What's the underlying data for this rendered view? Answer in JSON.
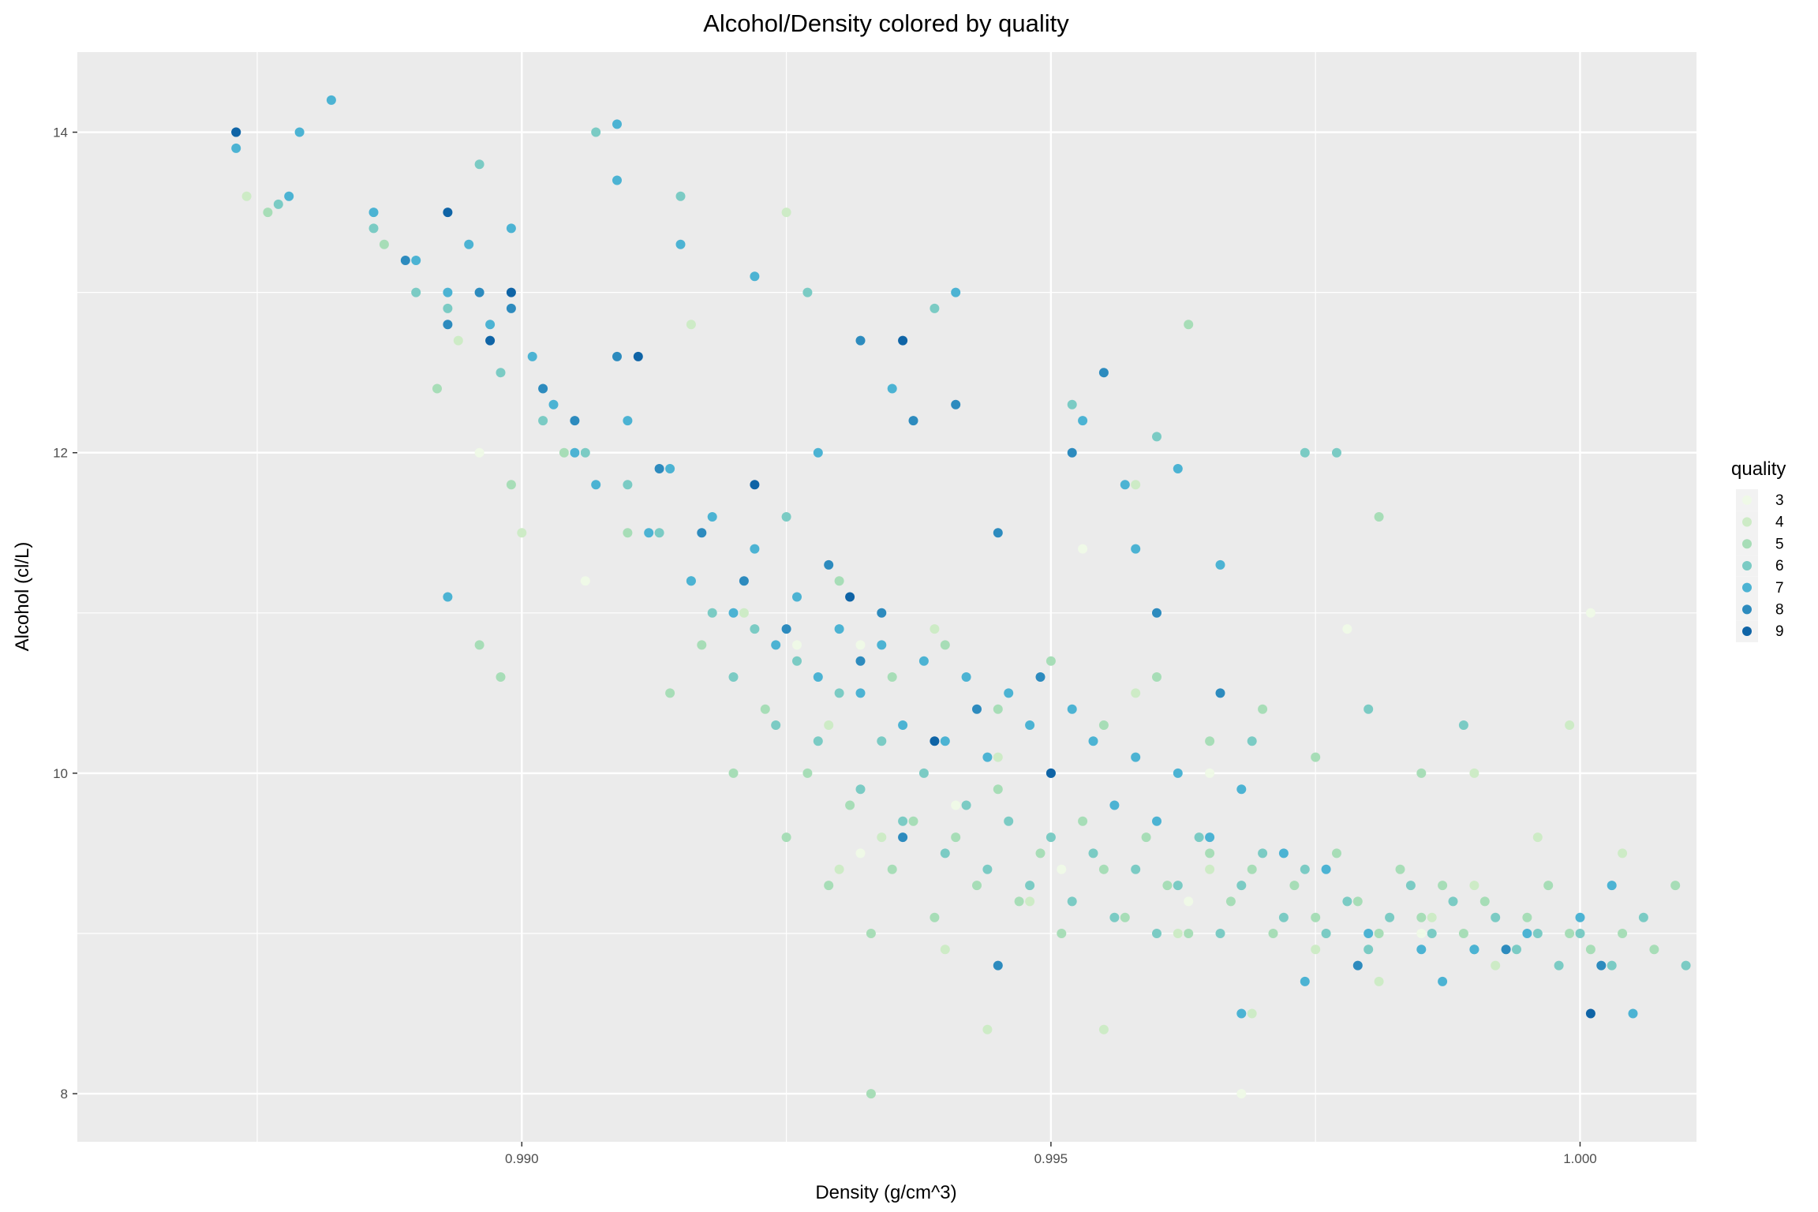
{
  "chart_data": {
    "type": "scatter",
    "title": "Alcohol/Density colored by quality",
    "xlabel": "Density (g/cm^3)",
    "ylabel": "Alcohol (cl/L)",
    "xlim": [
      0.9858,
      1.0011
    ],
    "ylim": [
      7.7,
      14.5
    ],
    "xticks": [
      0.99,
      0.995,
      1.0
    ],
    "xtick_labels": [
      "0.990",
      "0.995",
      "1.000"
    ],
    "yticks": [
      8,
      10,
      12,
      14
    ],
    "ytick_labels": [
      "8",
      "10",
      "12",
      "14"
    ],
    "grid": true,
    "legend_position": "right",
    "legend": {
      "title": "quality",
      "items": [
        {
          "label": "3",
          "color": "#eff9e7"
        },
        {
          "label": "4",
          "color": "#cdebc6"
        },
        {
          "label": "5",
          "color": "#a7ddb7"
        },
        {
          "label": "6",
          "color": "#7bcbc4"
        },
        {
          "label": "7",
          "color": "#4cb3d3"
        },
        {
          "label": "8",
          "color": "#2d8bbe"
        },
        {
          "label": "9",
          "color": "#0f64a6"
        }
      ]
    },
    "series": [
      {
        "name": "3",
        "points": [
          [
            0.9896,
            12.0
          ],
          [
            0.9906,
            11.2
          ],
          [
            0.9926,
            10.8
          ],
          [
            0.9932,
            9.5
          ],
          [
            0.9941,
            9.8
          ],
          [
            0.9951,
            9.4
          ],
          [
            0.9963,
            9.2
          ],
          [
            0.9968,
            8.0
          ],
          [
            0.9969,
            8.5
          ],
          [
            0.9978,
            10.9
          ],
          [
            1.0001,
            11.0
          ],
          [
            0.9965,
            10.0
          ],
          [
            0.9953,
            11.4
          ],
          [
            0.9985,
            9.0
          ],
          [
            0.9932,
            10.8
          ]
        ]
      },
      {
        "name": "4",
        "points": [
          [
            0.9874,
            13.6
          ],
          [
            0.9894,
            12.7
          ],
          [
            0.99,
            11.5
          ],
          [
            0.9916,
            12.8
          ],
          [
            0.9921,
            11.0
          ],
          [
            0.9925,
            13.5
          ],
          [
            0.9929,
            10.3
          ],
          [
            0.9934,
            9.6
          ],
          [
            0.994,
            8.9
          ],
          [
            0.9944,
            8.4
          ],
          [
            0.9948,
            9.2
          ],
          [
            0.9955,
            8.4
          ],
          [
            0.9958,
            11.8
          ],
          [
            0.9965,
            9.4
          ],
          [
            0.9969,
            8.5
          ],
          [
            0.9976,
            9.0
          ],
          [
            0.9981,
            8.7
          ],
          [
            0.9986,
            9.1
          ],
          [
            0.999,
            10.0
          ],
          [
            0.9996,
            9.6
          ],
          [
            0.9999,
            10.3
          ],
          [
            1.0004,
            9.5
          ],
          [
            0.9958,
            10.5
          ],
          [
            0.9962,
            9.0
          ],
          [
            0.9939,
            10.9
          ],
          [
            0.993,
            9.4
          ],
          [
            0.9945,
            10.1
          ],
          [
            0.9975,
            8.9
          ],
          [
            0.9992,
            8.8
          ],
          [
            0.999,
            9.3
          ]
        ]
      },
      {
        "name": "5",
        "points": [
          [
            0.9876,
            13.5
          ],
          [
            0.9887,
            13.3
          ],
          [
            0.9892,
            12.4
          ],
          [
            0.9899,
            11.8
          ],
          [
            0.9904,
            12.0
          ],
          [
            0.991,
            11.5
          ],
          [
            0.9914,
            10.5
          ],
          [
            0.9917,
            10.8
          ],
          [
            0.992,
            10.0
          ],
          [
            0.9923,
            10.4
          ],
          [
            0.9925,
            9.6
          ],
          [
            0.9927,
            10.0
          ],
          [
            0.9929,
            9.3
          ],
          [
            0.9931,
            9.8
          ],
          [
            0.9933,
            9.0
          ],
          [
            0.9935,
            9.4
          ],
          [
            0.9937,
            9.7
          ],
          [
            0.9939,
            9.1
          ],
          [
            0.9941,
            9.6
          ],
          [
            0.9943,
            9.3
          ],
          [
            0.9945,
            9.9
          ],
          [
            0.9947,
            9.2
          ],
          [
            0.9949,
            9.5
          ],
          [
            0.9951,
            9.0
          ],
          [
            0.9953,
            9.7
          ],
          [
            0.9955,
            9.4
          ],
          [
            0.9957,
            9.1
          ],
          [
            0.9959,
            9.6
          ],
          [
            0.9961,
            9.3
          ],
          [
            0.9963,
            9.0
          ],
          [
            0.9965,
            9.5
          ],
          [
            0.9967,
            9.2
          ],
          [
            0.9969,
            9.4
          ],
          [
            0.9971,
            9.0
          ],
          [
            0.9973,
            9.3
          ],
          [
            0.9975,
            9.1
          ],
          [
            0.9977,
            9.5
          ],
          [
            0.9979,
            9.2
          ],
          [
            0.9981,
            9.0
          ],
          [
            0.9983,
            9.4
          ],
          [
            0.9985,
            9.1
          ],
          [
            0.9987,
            9.3
          ],
          [
            0.9989,
            9.0
          ],
          [
            0.9991,
            9.2
          ],
          [
            0.9993,
            8.9
          ],
          [
            0.9995,
            9.1
          ],
          [
            0.9997,
            9.3
          ],
          [
            0.9999,
            9.0
          ],
          [
            1.0001,
            8.9
          ],
          [
            1.0004,
            9.0
          ],
          [
            1.0007,
            8.9
          ],
          [
            1.0009,
            9.3
          ],
          [
            0.9933,
            8.0
          ],
          [
            0.9963,
            12.8
          ],
          [
            0.9981,
            11.6
          ],
          [
            0.9896,
            10.8
          ],
          [
            0.9898,
            10.6
          ],
          [
            0.9935,
            10.6
          ],
          [
            0.9945,
            10.4
          ],
          [
            0.9955,
            10.3
          ],
          [
            0.9965,
            10.2
          ],
          [
            0.9975,
            10.1
          ],
          [
            0.9985,
            10.0
          ],
          [
            0.993,
            11.2
          ],
          [
            0.994,
            10.8
          ],
          [
            0.995,
            10.7
          ],
          [
            0.996,
            10.6
          ],
          [
            0.997,
            10.4
          ]
        ]
      },
      {
        "name": "6",
        "points": [
          [
            0.9877,
            13.55
          ],
          [
            0.9886,
            13.4
          ],
          [
            0.989,
            13.0
          ],
          [
            0.9896,
            13.8
          ],
          [
            0.9893,
            12.9
          ],
          [
            0.9898,
            12.5
          ],
          [
            0.9902,
            12.2
          ],
          [
            0.9906,
            12.0
          ],
          [
            0.991,
            11.8
          ],
          [
            0.9913,
            11.5
          ],
          [
            0.9916,
            11.2
          ],
          [
            0.9918,
            11.0
          ],
          [
            0.992,
            10.6
          ],
          [
            0.9922,
            10.9
          ],
          [
            0.9924,
            10.3
          ],
          [
            0.9926,
            10.7
          ],
          [
            0.9928,
            10.2
          ],
          [
            0.993,
            10.5
          ],
          [
            0.9932,
            9.9
          ],
          [
            0.9934,
            10.2
          ],
          [
            0.9936,
            9.7
          ],
          [
            0.9938,
            10.0
          ],
          [
            0.994,
            9.5
          ],
          [
            0.9942,
            9.8
          ],
          [
            0.9944,
            9.4
          ],
          [
            0.9946,
            9.7
          ],
          [
            0.9948,
            9.3
          ],
          [
            0.995,
            9.6
          ],
          [
            0.9952,
            9.2
          ],
          [
            0.9954,
            9.5
          ],
          [
            0.9956,
            9.1
          ],
          [
            0.9958,
            9.4
          ],
          [
            0.996,
            9.0
          ],
          [
            0.9962,
            9.3
          ],
          [
            0.9964,
            9.6
          ],
          [
            0.9966,
            9.0
          ],
          [
            0.9968,
            9.3
          ],
          [
            0.997,
            9.5
          ],
          [
            0.9972,
            9.1
          ],
          [
            0.9974,
            9.4
          ],
          [
            0.9976,
            9.0
          ],
          [
            0.9978,
            9.2
          ],
          [
            0.998,
            8.9
          ],
          [
            0.9982,
            9.1
          ],
          [
            0.9984,
            9.3
          ],
          [
            0.9986,
            9.0
          ],
          [
            0.9988,
            9.2
          ],
          [
            0.999,
            8.9
          ],
          [
            0.9992,
            9.1
          ],
          [
            0.9994,
            8.9
          ],
          [
            0.9996,
            9.0
          ],
          [
            0.9998,
            8.8
          ],
          [
            1.0,
            9.0
          ],
          [
            1.0003,
            8.8
          ],
          [
            1.0006,
            9.1
          ],
          [
            1.001,
            8.8
          ],
          [
            0.9907,
            14.0
          ],
          [
            0.9915,
            13.6
          ],
          [
            0.9927,
            13.0
          ],
          [
            0.9939,
            12.9
          ],
          [
            0.9952,
            12.3
          ],
          [
            0.996,
            12.1
          ],
          [
            0.9974,
            12.0
          ],
          [
            0.9977,
            12.0
          ],
          [
            0.9969,
            10.2
          ],
          [
            0.998,
            10.4
          ],
          [
            0.9989,
            10.3
          ],
          [
            0.9925,
            11.6
          ]
        ]
      },
      {
        "name": "7",
        "points": [
          [
            0.9873,
            13.9
          ],
          [
            0.9878,
            13.6
          ],
          [
            0.9879,
            14.0
          ],
          [
            0.9882,
            14.2
          ],
          [
            0.9886,
            13.5
          ],
          [
            0.989,
            13.2
          ],
          [
            0.9893,
            13.0
          ],
          [
            0.9895,
            13.3
          ],
          [
            0.9897,
            12.8
          ],
          [
            0.9899,
            13.4
          ],
          [
            0.9901,
            12.6
          ],
          [
            0.9903,
            12.3
          ],
          [
            0.9905,
            12.0
          ],
          [
            0.9907,
            11.8
          ],
          [
            0.9909,
            13.7
          ],
          [
            0.991,
            12.2
          ],
          [
            0.9912,
            11.5
          ],
          [
            0.9914,
            11.9
          ],
          [
            0.9916,
            11.2
          ],
          [
            0.9918,
            11.6
          ],
          [
            0.992,
            11.0
          ],
          [
            0.9922,
            11.4
          ],
          [
            0.9924,
            10.8
          ],
          [
            0.9926,
            11.1
          ],
          [
            0.9928,
            10.6
          ],
          [
            0.993,
            10.9
          ],
          [
            0.9932,
            10.5
          ],
          [
            0.9934,
            10.8
          ],
          [
            0.9936,
            10.3
          ],
          [
            0.9938,
            10.7
          ],
          [
            0.994,
            10.2
          ],
          [
            0.9942,
            10.6
          ],
          [
            0.9944,
            10.1
          ],
          [
            0.9946,
            10.5
          ],
          [
            0.9948,
            10.3
          ],
          [
            0.995,
            10.0
          ],
          [
            0.9952,
            10.4
          ],
          [
            0.9954,
            10.2
          ],
          [
            0.9956,
            9.8
          ],
          [
            0.9958,
            10.1
          ],
          [
            0.996,
            9.7
          ],
          [
            0.9962,
            10.0
          ],
          [
            0.9965,
            9.6
          ],
          [
            0.9968,
            9.9
          ],
          [
            0.9972,
            9.5
          ],
          [
            0.9976,
            9.4
          ],
          [
            0.998,
            9.0
          ],
          [
            0.9985,
            8.9
          ],
          [
            0.999,
            8.9
          ],
          [
            0.9995,
            9.0
          ],
          [
            1.0,
            9.1
          ],
          [
            1.0003,
            9.3
          ],
          [
            1.0005,
            8.5
          ],
          [
            0.9909,
            14.05
          ],
          [
            0.9915,
            13.3
          ],
          [
            0.9922,
            13.1
          ],
          [
            0.9935,
            12.4
          ],
          [
            0.9941,
            13.0
          ],
          [
            0.9953,
            12.2
          ],
          [
            0.9957,
            11.8
          ],
          [
            0.9962,
            11.9
          ],
          [
            0.9966,
            11.3
          ],
          [
            0.9893,
            11.1
          ],
          [
            0.9968,
            8.5
          ],
          [
            0.9974,
            8.7
          ],
          [
            0.9987,
            8.7
          ],
          [
            0.9958,
            11.4
          ],
          [
            0.9928,
            12.0
          ]
        ]
      },
      {
        "name": "8",
        "points": [
          [
            0.9873,
            14.0
          ],
          [
            0.9889,
            13.2
          ],
          [
            0.9893,
            12.8
          ],
          [
            0.9896,
            13.0
          ],
          [
            0.9899,
            12.9
          ],
          [
            0.9902,
            12.4
          ],
          [
            0.9905,
            12.2
          ],
          [
            0.9909,
            12.6
          ],
          [
            0.9913,
            11.9
          ],
          [
            0.9917,
            11.5
          ],
          [
            0.9921,
            11.2
          ],
          [
            0.9925,
            10.9
          ],
          [
            0.9929,
            11.3
          ],
          [
            0.9932,
            12.7
          ],
          [
            0.9934,
            11.0
          ],
          [
            0.9937,
            12.2
          ],
          [
            0.9941,
            12.3
          ],
          [
            0.9945,
            11.5
          ],
          [
            0.9949,
            10.6
          ],
          [
            0.9952,
            12.0
          ],
          [
            0.9955,
            12.5
          ],
          [
            0.996,
            11.0
          ],
          [
            0.9966,
            10.5
          ],
          [
            0.9945,
            8.8
          ],
          [
            0.9979,
            8.8
          ],
          [
            0.9993,
            8.9
          ],
          [
            1.0002,
            8.8
          ],
          [
            0.9936,
            9.6
          ],
          [
            0.9932,
            10.7
          ],
          [
            0.9943,
            10.4
          ]
        ]
      },
      {
        "name": "9",
        "points": [
          [
            0.9873,
            14.0
          ],
          [
            0.9893,
            13.5
          ],
          [
            0.9899,
            13.0
          ],
          [
            0.9911,
            12.6
          ],
          [
            0.9922,
            11.8
          ],
          [
            0.9931,
            11.1
          ],
          [
            0.9939,
            10.2
          ],
          [
            0.995,
            10.0
          ],
          [
            1.0001,
            8.5
          ],
          [
            0.9897,
            12.7
          ],
          [
            0.9936,
            12.7
          ]
        ]
      }
    ]
  }
}
